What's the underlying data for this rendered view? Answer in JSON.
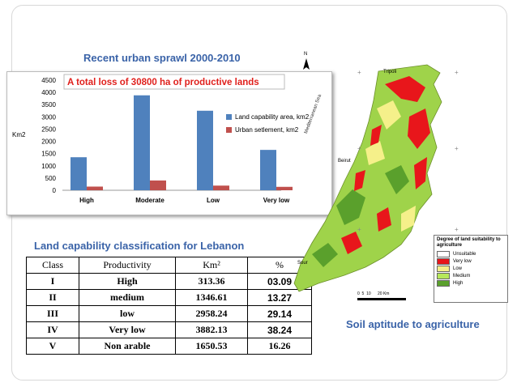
{
  "top_title": "Recent urban sprawl 2000-2010",
  "chart_data": {
    "type": "bar",
    "annotation": "A total loss of 30800 ha of productive lands",
    "ylabel": "Km2",
    "ylim": [
      0,
      4500
    ],
    "yticks": [
      0,
      500,
      1000,
      1500,
      2000,
      2500,
      3000,
      3500,
      4000,
      4500
    ],
    "categories": [
      "High",
      "Moderate",
      "Low",
      "Very low"
    ],
    "series": [
      {
        "name": "Land capability area, km2",
        "color": "#4f81bd",
        "values": [
          1350,
          3880,
          3250,
          1650
        ]
      },
      {
        "name": "Urban setlement, km2",
        "color": "#c0504d",
        "values": [
          150,
          400,
          190,
          140
        ]
      }
    ],
    "legend_position": "right"
  },
  "table": {
    "title": "Land capability classification for Lebanon",
    "headers": [
      "Class",
      "Productivity",
      "Km²",
      "%"
    ],
    "rows": [
      [
        "I",
        "High",
        "313.36",
        "03.09"
      ],
      [
        "II",
        "medium",
        "1346.61",
        "13.27"
      ],
      [
        "III",
        "low",
        "2958.24",
        "29.14"
      ],
      [
        "IV",
        "Very low",
        "3882.13",
        "38.24"
      ],
      [
        "V",
        "Non arable",
        "1650.53",
        "16.26"
      ]
    ]
  },
  "map": {
    "caption": "Soil aptitude to agriculture",
    "labels": {
      "north": "N",
      "tripoli": "Tripoli",
      "beirut": "Beirut",
      "sour": "Sour",
      "sea": "Mediterranean Sea",
      "scale": "0  5  10      20 Km"
    },
    "legend": {
      "title": "Degree of land suitability to agriculture",
      "items": [
        {
          "label": "Unsuitable",
          "color": "#ffffff"
        },
        {
          "label": "Very low",
          "color": "#e8161b"
        },
        {
          "label": "Low",
          "color": "#f5f08a"
        },
        {
          "label": "Medium",
          "color": "#b6e85a"
        },
        {
          "label": "High",
          "color": "#5aa02c"
        }
      ]
    }
  }
}
